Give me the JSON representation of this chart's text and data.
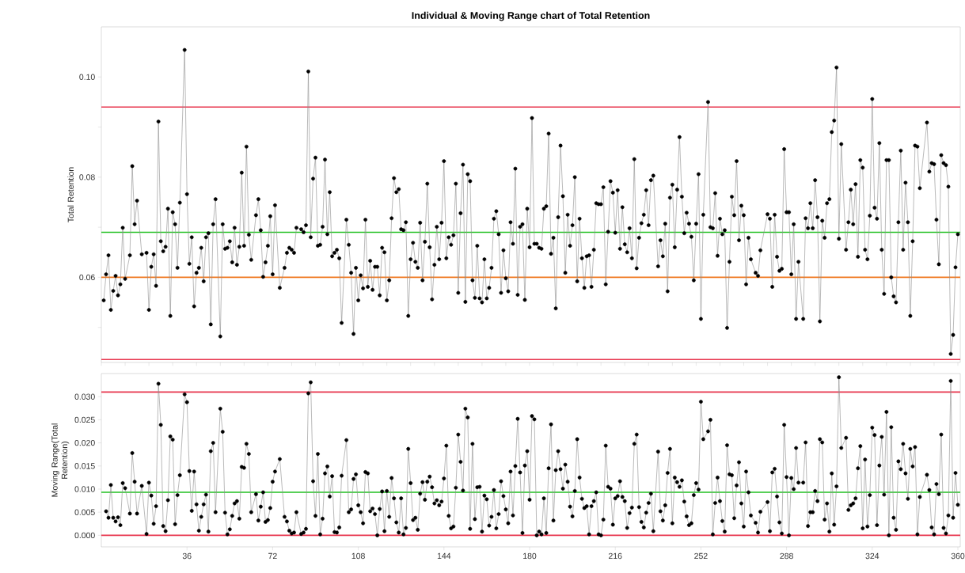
{
  "chart_data": [
    {
      "type": "line",
      "title": "Individual & Moving Range chart of Total Retention",
      "ylabel": "Total Retention",
      "x": [
        1,
        2,
        3,
        4,
        5,
        6,
        7,
        8,
        9,
        10,
        12,
        13,
        14,
        15,
        17,
        19,
        20,
        21,
        22,
        23,
        24,
        25,
        26,
        27,
        28,
        29,
        30,
        31,
        32,
        33,
        35,
        36,
        37,
        38,
        39,
        40,
        41,
        42,
        43,
        44,
        45,
        46,
        47,
        48,
        50,
        51,
        52,
        53,
        54,
        55,
        56,
        57,
        58,
        59,
        60,
        61,
        62,
        63,
        65,
        66,
        67,
        68,
        69,
        70,
        71,
        72,
        73,
        75,
        77,
        78,
        79,
        80,
        81,
        82,
        84,
        85,
        86,
        87,
        88,
        89,
        90,
        91,
        92,
        93,
        94,
        95,
        96,
        97,
        98,
        99,
        100,
        101,
        103,
        104,
        105,
        106,
        107,
        108,
        109,
        110,
        111,
        112,
        113,
        114,
        115,
        116,
        117,
        118,
        119,
        120,
        121,
        122,
        123,
        124,
        125,
        126,
        127,
        128,
        129,
        130,
        131,
        132,
        133,
        134,
        135,
        136,
        137,
        138,
        139,
        140,
        141,
        142,
        143,
        144,
        145,
        146,
        147,
        148,
        149,
        150,
        151,
        152,
        153,
        154,
        155,
        156,
        157,
        158,
        159,
        160,
        161,
        162,
        163,
        164,
        165,
        166,
        167,
        168,
        169,
        170,
        171,
        172,
        173,
        174,
        175,
        176,
        177,
        178,
        179,
        180,
        181,
        182,
        183,
        184,
        185,
        186,
        187,
        188,
        189,
        190,
        191,
        192,
        193,
        194,
        195,
        196,
        197,
        198,
        199,
        200,
        201,
        202,
        203,
        204,
        205,
        206,
        207,
        208,
        209,
        210,
        211,
        212,
        213,
        214,
        215,
        216,
        217,
        218,
        219,
        220,
        221,
        222,
        223,
        224,
        225,
        226,
        227,
        228,
        229,
        230,
        231,
        232,
        234,
        235,
        236,
        237,
        238,
        239,
        240,
        241,
        242,
        243,
        244,
        245,
        246,
        247,
        248,
        249,
        250,
        251,
        252,
        253,
        255,
        256,
        257,
        258,
        259,
        260,
        261,
        262,
        263,
        264,
        265,
        266,
        267,
        268,
        269,
        270,
        271,
        272,
        273,
        275,
        276,
        277,
        280,
        281,
        282,
        283,
        284,
        285,
        286,
        287,
        288,
        289,
        290,
        291,
        292,
        293,
        295,
        296,
        297,
        298,
        299,
        300,
        301,
        302,
        303,
        304,
        305,
        306,
        307,
        308,
        309,
        310,
        311,
        313,
        314,
        315,
        316,
        317,
        318,
        319,
        320,
        321,
        322,
        323,
        324,
        325,
        326,
        327,
        328,
        329,
        330,
        331,
        332,
        333,
        334,
        335,
        336,
        337,
        338,
        339,
        340,
        341,
        342,
        343,
        344,
        347,
        348,
        349,
        350,
        351,
        352,
        353,
        354,
        355,
        356,
        357,
        358,
        359,
        360
      ],
      "series": [
        {
          "color": "#000000",
          "values": [
            0.0554,
            0.0606,
            0.0644,
            0.0535,
            0.0573,
            0.0603,
            0.0564,
            0.0586,
            0.0699,
            0.0597,
            0.0644,
            0.0822,
            0.0706,
            0.0753,
            0.0646,
            0.0649,
            0.0535,
            0.0621,
            0.0646,
            0.0583,
            0.0911,
            0.0672,
            0.0652,
            0.0661,
            0.0737,
            0.0523,
            0.073,
            0.0706,
            0.0619,
            0.0749,
            0.1054,
            0.0766,
            0.0627,
            0.068,
            0.0542,
            0.0609,
            0.0619,
            0.0659,
            0.0592,
            0.068,
            0.0688,
            0.0506,
            0.0706,
            0.0756,
            0.0482,
            0.0706,
            0.0657,
            0.0659,
            0.0672,
            0.063,
            0.0699,
            0.0625,
            0.0661,
            0.0809,
            0.0663,
            0.0861,
            0.0685,
            0.0635,
            0.0724,
            0.0756,
            0.0694,
            0.0601,
            0.063,
            0.0663,
            0.0722,
            0.0606,
            0.0744,
            0.0579,
            0.0619,
            0.0649,
            0.0659,
            0.0655,
            0.0649,
            0.0699,
            0.0696,
            0.069,
            0.0704,
            0.1011,
            0.068,
            0.0797,
            0.0839,
            0.0663,
            0.0665,
            0.0701,
            0.0835,
            0.0686,
            0.077,
            0.0642,
            0.0649,
            0.0655,
            0.0638,
            0.0509,
            0.0715,
            0.0665,
            0.0609,
            0.0487,
            0.0619,
            0.0554,
            0.0604,
            0.0578,
            0.0715,
            0.0581,
            0.0633,
            0.0575,
            0.0621,
            0.0621,
            0.0564,
            0.0659,
            0.065,
            0.0554,
            0.0594,
            0.0718,
            0.0798,
            0.077,
            0.0776,
            0.0696,
            0.0694,
            0.071,
            0.0523,
            0.0636,
            0.0669,
            0.0631,
            0.0619,
            0.0709,
            0.0594,
            0.0671,
            0.0787,
            0.066,
            0.0556,
            0.0625,
            0.0701,
            0.0636,
            0.0709,
            0.0832,
            0.0638,
            0.068,
            0.0665,
            0.0684,
            0.0787,
            0.0569,
            0.0728,
            0.0825,
            0.0551,
            0.0806,
            0.0792,
            0.0594,
            0.0559,
            0.0663,
            0.0558,
            0.055,
            0.0636,
            0.0558,
            0.0579,
            0.0619,
            0.0717,
            0.0732,
            0.0686,
            0.0569,
            0.0654,
            0.0598,
            0.0572,
            0.071,
            0.0667,
            0.0817,
            0.0565,
            0.0701,
            0.0706,
            0.0555,
            0.0737,
            0.066,
            0.0918,
            0.0667,
            0.0667,
            0.0659,
            0.0657,
            0.0737,
            0.0742,
            0.0887,
            0.0647,
            0.0679,
            0.0538,
            0.072,
            0.0863,
            0.0762,
            0.0609,
            0.0725,
            0.0663,
            0.0704,
            0.08,
            0.0592,
            0.0717,
            0.0638,
            0.0579,
            0.0642,
            0.0644,
            0.0581,
            0.0655,
            0.0748,
            0.0746,
            0.0746,
            0.078,
            0.0586,
            0.0691,
            0.0792,
            0.0769,
            0.0689,
            0.0774,
            0.0657,
            0.074,
            0.0666,
            0.065,
            0.0698,
            0.0638,
            0.0836,
            0.0618,
            0.0679,
            0.0708,
            0.0725,
            0.0774,
            0.0704,
            0.0794,
            0.0803,
            0.0622,
            0.0674,
            0.0642,
            0.0707,
            0.0572,
            0.0759,
            0.0785,
            0.066,
            0.0775,
            0.088,
            0.0761,
            0.0688,
            0.0729,
            0.0707,
            0.0681,
            0.0594,
            0.0707,
            0.0806,
            0.0517,
            0.0725,
            0.095,
            0.07,
            0.0698,
            0.0768,
            0.0643,
            0.0717,
            0.0686,
            0.0694,
            0.0499,
            0.0631,
            0.0761,
            0.0724,
            0.0832,
            0.0674,
            0.0743,
            0.0724,
            0.0586,
            0.0679,
            0.0636,
            0.0609,
            0.0603,
            0.0654,
            0.0726,
            0.0717,
            0.0581,
            0.0725,
            0.0641,
            0.0613,
            0.0617,
            0.0856,
            0.073,
            0.073,
            0.0606,
            0.0706,
            0.0517,
            0.0631,
            0.0517,
            0.0718,
            0.0698,
            0.0748,
            0.0698,
            0.0794,
            0.072,
            0.0512,
            0.0713,
            0.0679,
            0.0748,
            0.0756,
            0.089,
            0.0913,
            0.1019,
            0.0677,
            0.0866,
            0.0655,
            0.071,
            0.0775,
            0.0706,
            0.0786,
            0.0641,
            0.0834,
            0.0819,
            0.0655,
            0.0636,
            0.0723,
            0.0956,
            0.0739,
            0.0717,
            0.0868,
            0.0655,
            0.0567,
            0.0834,
            0.0834,
            0.06,
            0.0562,
            0.055,
            0.071,
            0.0853,
            0.0655,
            0.0789,
            0.071,
            0.0523,
            0.0672,
            0.0863,
            0.0861,
            0.0778,
            0.0909,
            0.0811,
            0.0828,
            0.0826,
            0.0715,
            0.0626,
            0.0844,
            0.0828,
            0.0824,
            0.0781,
            0.0447,
            0.0485,
            0.062,
            0.0686
          ]
        }
      ],
      "xlim": [
        0,
        361
      ],
      "ylim": [
        0.043,
        0.11
      ],
      "yticks": [
        {
          "value": 0.05,
          "label": null
        },
        0.06,
        {
          "value": 0.07,
          "label": null
        },
        0.08,
        {
          "value": 0.09,
          "label": null
        },
        {
          "value": 0.1,
          "label": "0.10"
        }
      ],
      "ref_lines": [
        {
          "axis": "y",
          "value": 0.094,
          "color": "#e8364e"
        },
        {
          "axis": "y",
          "value": 0.069,
          "color": "#22c022"
        },
        {
          "axis": "y",
          "value": 0.06,
          "color": "#f07820"
        },
        {
          "axis": "y",
          "value": 0.0436,
          "color": "#e8364e"
        }
      ],
      "marker": "circle",
      "tick_labels": "y"
    },
    {
      "type": "line",
      "ylabel": "Moving Range(Total Retention)",
      "x": [
        2,
        3,
        4,
        5,
        6,
        7,
        8,
        9,
        10,
        12,
        13,
        14,
        15,
        17,
        19,
        20,
        21,
        22,
        23,
        24,
        25,
        26,
        27,
        28,
        29,
        30,
        31,
        32,
        33,
        35,
        36,
        37,
        38,
        39,
        40,
        41,
        42,
        43,
        44,
        45,
        46,
        47,
        48,
        50,
        51,
        52,
        53,
        54,
        55,
        56,
        57,
        58,
        59,
        60,
        61,
        62,
        63,
        65,
        66,
        67,
        68,
        69,
        70,
        71,
        72,
        73,
        75,
        77,
        78,
        79,
        80,
        81,
        82,
        84,
        85,
        86,
        87,
        88,
        89,
        90,
        91,
        92,
        93,
        94,
        95,
        96,
        97,
        98,
        99,
        100,
        101,
        103,
        104,
        105,
        106,
        107,
        108,
        109,
        110,
        111,
        112,
        113,
        114,
        115,
        116,
        117,
        118,
        119,
        120,
        121,
        122,
        123,
        124,
        125,
        126,
        127,
        128,
        129,
        130,
        131,
        132,
        133,
        134,
        135,
        136,
        137,
        138,
        139,
        140,
        141,
        142,
        143,
        144,
        145,
        146,
        147,
        148,
        149,
        150,
        151,
        152,
        153,
        154,
        155,
        156,
        157,
        158,
        159,
        160,
        161,
        162,
        163,
        164,
        165,
        166,
        167,
        168,
        169,
        170,
        171,
        172,
        173,
        174,
        175,
        176,
        177,
        178,
        179,
        180,
        181,
        182,
        183,
        184,
        185,
        186,
        187,
        188,
        189,
        190,
        191,
        192,
        193,
        194,
        195,
        196,
        197,
        198,
        199,
        200,
        201,
        202,
        203,
        204,
        205,
        206,
        207,
        208,
        209,
        210,
        211,
        212,
        213,
        214,
        215,
        216,
        217,
        218,
        219,
        220,
        221,
        222,
        223,
        224,
        225,
        226,
        227,
        228,
        229,
        230,
        231,
        232,
        234,
        235,
        236,
        237,
        238,
        239,
        240,
        241,
        242,
        243,
        244,
        245,
        246,
        247,
        248,
        249,
        250,
        251,
        252,
        253,
        255,
        256,
        257,
        258,
        259,
        260,
        261,
        262,
        263,
        264,
        265,
        266,
        267,
        268,
        269,
        270,
        271,
        272,
        273,
        275,
        276,
        277,
        280,
        281,
        282,
        283,
        284,
        285,
        286,
        287,
        288,
        289,
        290,
        291,
        292,
        293,
        295,
        296,
        297,
        298,
        299,
        300,
        301,
        302,
        303,
        304,
        305,
        306,
        307,
        308,
        309,
        310,
        311,
        313,
        314,
        315,
        316,
        317,
        318,
        319,
        320,
        321,
        322,
        323,
        324,
        325,
        326,
        327,
        328,
        329,
        330,
        331,
        332,
        333,
        334,
        335,
        336,
        337,
        338,
        339,
        340,
        341,
        342,
        343,
        344,
        347,
        348,
        349,
        350,
        351,
        352,
        353,
        354,
        355,
        356,
        357,
        358,
        359,
        360
      ],
      "series": [
        {
          "color": "#000000",
          "values": [
            0.0052,
            0.0038,
            0.0109,
            0.0038,
            0.003,
            0.0039,
            0.0022,
            0.0113,
            0.0102,
            0.0047,
            0.0178,
            0.0116,
            0.0047,
            0.0107,
            0.0003,
            0.0114,
            0.0086,
            0.0025,
            0.0063,
            0.0328,
            0.0239,
            0.002,
            0.0009,
            0.0076,
            0.0214,
            0.0207,
            0.0024,
            0.0087,
            0.013,
            0.0305,
            0.0288,
            0.0139,
            0.0053,
            0.0138,
            0.0067,
            0.001,
            0.004,
            0.0067,
            0.0088,
            0.0008,
            0.0182,
            0.02,
            0.005,
            0.0274,
            0.0224,
            0.0049,
            0.0002,
            0.0013,
            0.0042,
            0.0069,
            0.0074,
            0.0036,
            0.0148,
            0.0146,
            0.0198,
            0.0176,
            0.005,
            0.0089,
            0.0032,
            0.0062,
            0.0093,
            0.0029,
            0.0033,
            0.0059,
            0.0116,
            0.0138,
            0.0165,
            0.004,
            0.003,
            0.001,
            0.0004,
            0.0006,
            0.005,
            0.0003,
            0.0006,
            0.0014,
            0.0307,
            0.0331,
            0.0117,
            0.0042,
            0.0176,
            0.0002,
            0.0036,
            0.0134,
            0.0149,
            0.0084,
            0.0128,
            0.0007,
            0.0006,
            0.0017,
            0.0129,
            0.0206,
            0.005,
            0.0056,
            0.0122,
            0.0132,
            0.0065,
            0.005,
            0.0026,
            0.0137,
            0.0134,
            0.0052,
            0.0058,
            0.0046,
            0.0,
            0.0057,
            0.0095,
            0.0009,
            0.0096,
            0.004,
            0.0124,
            0.008,
            0.0028,
            0.0006,
            0.008,
            0.0002,
            0.0016,
            0.0187,
            0.0113,
            0.0033,
            0.0038,
            0.0012,
            0.009,
            0.0115,
            0.0077,
            0.0116,
            0.0127,
            0.0104,
            0.0069,
            0.0076,
            0.0065,
            0.0073,
            0.0123,
            0.0194,
            0.0042,
            0.0015,
            0.0019,
            0.0103,
            0.0218,
            0.0159,
            0.0097,
            0.0274,
            0.0255,
            0.0014,
            0.0198,
            0.0035,
            0.0104,
            0.0105,
            0.0008,
            0.0086,
            0.0078,
            0.0021,
            0.004,
            0.0098,
            0.0015,
            0.0046,
            0.0117,
            0.0085,
            0.0056,
            0.0026,
            0.0138,
            0.0043,
            0.015,
            0.0252,
            0.0136,
            0.0005,
            0.0151,
            0.0182,
            0.0077,
            0.0258,
            0.0251,
            0.0,
            0.0008,
            0.0002,
            0.008,
            0.0005,
            0.0145,
            0.024,
            0.0032,
            0.0141,
            0.0182,
            0.0143,
            0.0101,
            0.0153,
            0.0116,
            0.0062,
            0.0041,
            0.0096,
            0.0208,
            0.0125,
            0.0079,
            0.0059,
            0.0063,
            0.0002,
            0.0063,
            0.0074,
            0.0093,
            0.0002,
            0.0,
            0.0034,
            0.0194,
            0.0105,
            0.0101,
            0.0023,
            0.008,
            0.0085,
            0.0117,
            0.0083,
            0.0074,
            0.0016,
            0.0048,
            0.006,
            0.0198,
            0.0218,
            0.0061,
            0.0029,
            0.0017,
            0.0049,
            0.007,
            0.009,
            0.0009,
            0.0181,
            0.0052,
            0.0032,
            0.0065,
            0.0135,
            0.0187,
            0.0026,
            0.0125,
            0.0115,
            0.0105,
            0.0119,
            0.0073,
            0.0041,
            0.0022,
            0.0026,
            0.0087,
            0.0113,
            0.0099,
            0.0289,
            0.0208,
            0.0225,
            0.025,
            0.0002,
            0.007,
            0.0125,
            0.0074,
            0.0031,
            0.0008,
            0.0195,
            0.0132,
            0.013,
            0.0037,
            0.0108,
            0.0158,
            0.0069,
            0.0019,
            0.0138,
            0.0093,
            0.0043,
            0.0027,
            0.0006,
            0.0051,
            0.0072,
            0.0009,
            0.0136,
            0.0144,
            0.0084,
            0.0028,
            0.0004,
            0.0239,
            0.0126,
            0.0,
            0.0124,
            0.01,
            0.0189,
            0.0114,
            0.0114,
            0.0201,
            0.002,
            0.005,
            0.005,
            0.0096,
            0.0074,
            0.0208,
            0.0201,
            0.0034,
            0.0069,
            0.0008,
            0.0134,
            0.0023,
            0.0106,
            0.0342,
            0.0189,
            0.0211,
            0.0055,
            0.0065,
            0.0069,
            0.008,
            0.0145,
            0.0193,
            0.0015,
            0.0164,
            0.0019,
            0.0087,
            0.0233,
            0.0217,
            0.0022,
            0.0151,
            0.0213,
            0.0088,
            0.0267,
            0.0,
            0.0234,
            0.0038,
            0.0012,
            0.016,
            0.0143,
            0.0198,
            0.0134,
            0.0079,
            0.0187,
            0.0149,
            0.0191,
            0.0002,
            0.0083,
            0.0131,
            0.0098,
            0.0017,
            0.0002,
            0.0111,
            0.0089,
            0.0218,
            0.0016,
            0.0004,
            0.0043,
            0.0334,
            0.0038,
            0.0135,
            0.0066
          ]
        }
      ],
      "xlim": [
        0,
        361
      ],
      "xticks": [
        36,
        72,
        108,
        144,
        180,
        216,
        252,
        288,
        324,
        360
      ],
      "ylim": [
        -0.0025,
        0.035
      ],
      "yticks": [
        {
          "value": 0,
          "label": "0.000"
        },
        {
          "value": 0.005,
          "label": "0.005"
        },
        {
          "value": 0.01,
          "label": "0.010"
        },
        {
          "value": 0.015,
          "label": "0.015"
        },
        {
          "value": 0.02,
          "label": "0.020"
        },
        {
          "value": 0.025,
          "label": "0.025"
        },
        {
          "value": 0.03,
          "label": "0.030"
        }
      ],
      "ref_lines": [
        {
          "axis": "y",
          "value": 0.031,
          "color": "#e8364e"
        },
        {
          "axis": "y",
          "value": 0.0093,
          "color": "#22c022"
        },
        {
          "axis": "y",
          "value": 0,
          "color": "#e8364e"
        }
      ],
      "marker": "circle"
    }
  ]
}
